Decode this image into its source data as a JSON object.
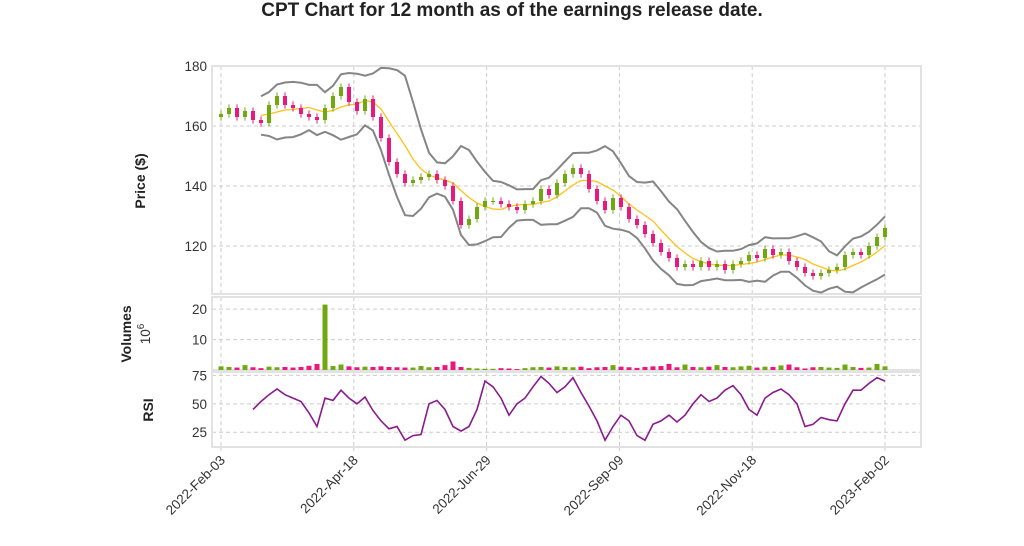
{
  "chart_data": {
    "type": "candlestick",
    "title": "CPT Chart for 12 month as of the earnings release date.",
    "x_tick_labels": [
      "2022-Feb-03",
      "2022-Apr-18",
      "2022-Jun-29",
      "2022-Sep-09",
      "2022-Nov-18",
      "2023-Feb-02"
    ],
    "grid": true,
    "colors": {
      "up": "#70a80f",
      "down": "#e6197d",
      "ma": "#ffc21a",
      "bands": "#858585",
      "rsi": "#8a1a8e",
      "frame": "#e2e2e2",
      "grid": "#cccccc"
    },
    "price_panel": {
      "ylabel": "Price ($)",
      "ylim": [
        104,
        180
      ],
      "yticks": [
        120,
        140,
        160,
        180
      ],
      "close": [
        164,
        166,
        163,
        165,
        162,
        161,
        167,
        170,
        167,
        166,
        164,
        163,
        162,
        166,
        170,
        173,
        168,
        165,
        169,
        163,
        156,
        148,
        144,
        141,
        142,
        143,
        144,
        142,
        140,
        135,
        127,
        129,
        133,
        135,
        135,
        134,
        133,
        132,
        134,
        135,
        139,
        137,
        141,
        144,
        146,
        144,
        139,
        135,
        132,
        136,
        133,
        129,
        127,
        124,
        121,
        118,
        116,
        113,
        114,
        113,
        115,
        113,
        114,
        112,
        114,
        115,
        117,
        116,
        119,
        117,
        118,
        115,
        113,
        111,
        110,
        111,
        112,
        113,
        117,
        118,
        117,
        120,
        123,
        126
      ]
    },
    "volume_panel": {
      "ylabel": "Volumes",
      "scale_label": "10^6",
      "ylim": [
        0,
        24
      ],
      "yticks": [
        10,
        20
      ],
      "values": [
        1.2,
        1.0,
        0.8,
        1.6,
        0.9,
        0.6,
        1.1,
        0.9,
        1.0,
        0.8,
        1.0,
        1.4,
        2.0,
        21.5,
        1.3,
        1.8,
        1.2,
        0.9,
        1.1,
        1.0,
        1.2,
        1.0,
        0.9,
        0.8,
        0.8,
        1.3,
        0.9,
        1.0,
        1.6,
        2.8,
        1.0,
        0.7,
        0.5,
        0.4,
        0.4,
        0.6,
        0.5,
        0.3,
        0.6,
        0.9,
        1.0,
        0.8,
        1.2,
        1.0,
        0.9,
        1.1,
        0.6,
        0.9,
        1.0,
        1.6,
        1.1,
        0.9,
        0.7,
        1.0,
        1.2,
        1.3,
        2.0,
        0.9,
        1.8,
        1.0,
        0.9,
        1.1,
        1.6,
        1.0,
        0.9,
        1.2,
        1.4,
        0.8,
        1.1,
        1.0,
        1.5,
        1.8,
        0.9,
        0.5,
        0.9,
        1.0,
        0.8,
        0.7,
        1.8,
        1.0,
        0.7,
        0.8,
        2.0,
        1.2
      ]
    },
    "rsi_panel": {
      "ylabel": "RSI",
      "ylim": [
        12,
        78
      ],
      "yticks": [
        25,
        50,
        75
      ],
      "values": [
        null,
        null,
        null,
        null,
        45,
        52,
        58,
        63,
        58,
        55,
        52,
        42,
        30,
        55,
        53,
        62,
        55,
        50,
        56,
        44,
        35,
        28,
        30,
        18,
        22,
        23,
        50,
        53,
        45,
        30,
        26,
        30,
        45,
        70,
        65,
        55,
        40,
        50,
        55,
        65,
        74,
        68,
        60,
        65,
        73,
        60,
        48,
        35,
        18,
        30,
        40,
        35,
        22,
        18,
        32,
        35,
        40,
        34,
        40,
        50,
        58,
        52,
        55,
        62,
        66,
        58,
        45,
        40,
        55,
        60,
        63,
        58,
        50,
        30,
        32,
        38,
        36,
        35,
        50,
        62,
        62,
        68,
        73,
        70
      ]
    }
  }
}
